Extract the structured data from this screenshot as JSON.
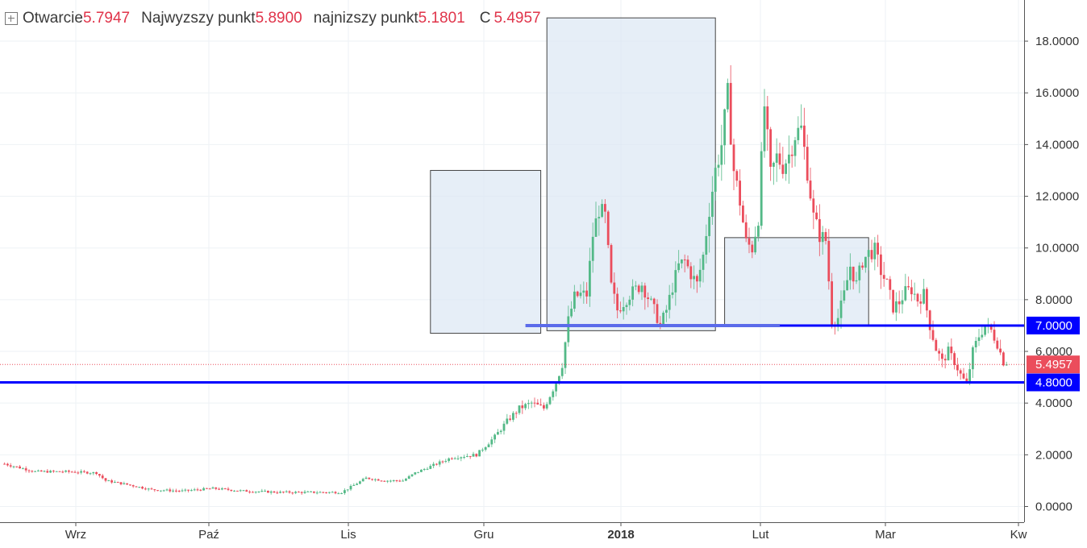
{
  "legend": {
    "open_label": "Otwarcie",
    "open_value": "5.7947",
    "high_label": "Najwyzszy punkt",
    "high_value": "5.8900",
    "low_label": "najnizszy punkt",
    "low_value": "5.1801",
    "close_label": "C",
    "close_value": "5.4957"
  },
  "colors": {
    "up": "#53b987",
    "down": "#eb4d5c",
    "grid": "#eef2f5",
    "support_line": "#0000ff",
    "support_line_light": "#5b6bea",
    "price_tag": "#eb4d5c",
    "box_fill": "#dce7f3",
    "box_border": "#444444"
  },
  "chart_data": {
    "type": "candlestick",
    "y_axis": {
      "range": [
        -0.5,
        19.5
      ],
      "ticks": [
        "0.0000",
        "2.0000",
        "4.0000",
        "6.0000",
        "8.0000",
        "10.0000",
        "12.0000",
        "14.0000",
        "16.0000",
        "18.0000"
      ]
    },
    "x_axis": {
      "labels": [
        "Wrz",
        "Paź",
        "Lis",
        "Gru",
        "2018",
        "Lut",
        "Mar",
        "Kw"
      ]
    },
    "last_price": 5.4957,
    "last_price_label": "5.4957",
    "support_levels": [
      {
        "value": 7.0,
        "label": "7.0000"
      },
      {
        "value": 4.8,
        "label": "4.8000"
      }
    ],
    "highlight_boxes": [
      {
        "from_day": 139,
        "to_day": 175,
        "low": 6.7,
        "high": 13.0
      },
      {
        "from_day": 177,
        "to_day": 232,
        "low": 6.8,
        "high": 18.9
      },
      {
        "from_day": 235,
        "to_day": 282,
        "low": 7.0,
        "high": 10.4
      }
    ],
    "anchors": [
      [
        0,
        1.65
      ],
      [
        10,
        1.35
      ],
      [
        20,
        1.35
      ],
      [
        30,
        1.3
      ],
      [
        33,
        1.0
      ],
      [
        40,
        0.85
      ],
      [
        48,
        0.65
      ],
      [
        58,
        0.6
      ],
      [
        68,
        0.7
      ],
      [
        78,
        0.6
      ],
      [
        90,
        0.55
      ],
      [
        100,
        0.55
      ],
      [
        110,
        0.55
      ],
      [
        118,
        1.1
      ],
      [
        124,
        1.0
      ],
      [
        130,
        1.0
      ],
      [
        134,
        1.3
      ],
      [
        140,
        1.6
      ],
      [
        146,
        1.9
      ],
      [
        154,
        2.0
      ],
      [
        160,
        2.7
      ],
      [
        164,
        3.3
      ],
      [
        168,
        3.8
      ],
      [
        172,
        4.0
      ],
      [
        176,
        3.8
      ],
      [
        180,
        4.8
      ],
      [
        182,
        5.5
      ],
      [
        184,
        7.2
      ],
      [
        186,
        8.1
      ],
      [
        188,
        8.2
      ],
      [
        190,
        8.2
      ],
      [
        192,
        10.5
      ],
      [
        194,
        11.5
      ],
      [
        196,
        11.2
      ],
      [
        198,
        8.5
      ],
      [
        200,
        7.6
      ],
      [
        204,
        8.2
      ],
      [
        208,
        8.6
      ],
      [
        212,
        7.6
      ],
      [
        214,
        7.0
      ],
      [
        216,
        7.6
      ],
      [
        218,
        8.5
      ],
      [
        220,
        9.3
      ],
      [
        222,
        9.5
      ],
      [
        224,
        9.0
      ],
      [
        226,
        8.6
      ],
      [
        228,
        9.7
      ],
      [
        230,
        11.5
      ],
      [
        232,
        13.0
      ],
      [
        234,
        14.0
      ],
      [
        236,
        15.9
      ],
      [
        238,
        13.0
      ],
      [
        240,
        11.8
      ],
      [
        242,
        10.2
      ],
      [
        244,
        10.0
      ],
      [
        246,
        11.2
      ],
      [
        248,
        15.5
      ],
      [
        250,
        12.8
      ],
      [
        252,
        13.5
      ],
      [
        254,
        13.2
      ],
      [
        256,
        13.6
      ],
      [
        258,
        14.4
      ],
      [
        260,
        14.6
      ],
      [
        262,
        13.0
      ],
      [
        264,
        11.2
      ],
      [
        266,
        10.5
      ],
      [
        268,
        10.3
      ],
      [
        270,
        7.2
      ],
      [
        272,
        7.3
      ],
      [
        274,
        8.2
      ],
      [
        276,
        9.3
      ],
      [
        278,
        8.6
      ],
      [
        280,
        9.5
      ],
      [
        282,
        9.8
      ],
      [
        284,
        9.9
      ],
      [
        286,
        9.1
      ],
      [
        288,
        8.6
      ],
      [
        290,
        7.7
      ],
      [
        292,
        7.9
      ],
      [
        294,
        8.3
      ],
      [
        296,
        8.4
      ],
      [
        298,
        8.0
      ],
      [
        300,
        8.2
      ],
      [
        302,
        7.0
      ],
      [
        304,
        6.1
      ],
      [
        306,
        5.6
      ],
      [
        308,
        6.0
      ],
      [
        310,
        5.6
      ],
      [
        312,
        5.1
      ],
      [
        314,
        4.7
      ],
      [
        316,
        6.0
      ],
      [
        318,
        6.6
      ],
      [
        320,
        7.0
      ],
      [
        322,
        6.8
      ],
      [
        324,
        6.3
      ],
      [
        326,
        5.6
      ],
      [
        327,
        5.4957
      ]
    ]
  }
}
